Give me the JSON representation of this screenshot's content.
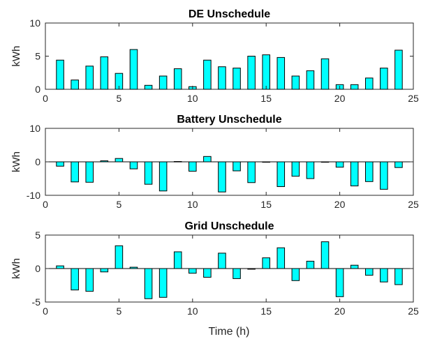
{
  "figure": {
    "xlabel": "Time (h)"
  },
  "style": {
    "bar_color": "#00ffff",
    "edge_color": "#000000"
  },
  "chart_data": [
    {
      "type": "bar",
      "title": "DE Unschedule",
      "ylabel": "kWh",
      "xlabel": "",
      "xlim": [
        0,
        25
      ],
      "ylim": [
        0,
        10
      ],
      "xticks": [
        0,
        5,
        10,
        15,
        20,
        25
      ],
      "yticks": [
        0,
        5,
        10
      ],
      "x": [
        1,
        2,
        3,
        4,
        5,
        6,
        7,
        8,
        9,
        10,
        11,
        12,
        13,
        14,
        15,
        16,
        17,
        18,
        19,
        20,
        21,
        22,
        23,
        24
      ],
      "values": [
        4.4,
        1.4,
        3.5,
        4.9,
        2.4,
        6.0,
        0.6,
        2.0,
        3.1,
        0.4,
        4.4,
        3.4,
        3.2,
        5.0,
        5.2,
        4.8,
        2.0,
        2.8,
        4.6,
        0.7,
        0.7,
        1.7,
        3.2,
        5.9
      ]
    },
    {
      "type": "bar",
      "title": "Battery Unschedule",
      "ylabel": "kWh",
      "xlabel": "",
      "xlim": [
        0,
        25
      ],
      "ylim": [
        -10,
        10
      ],
      "xticks": [
        0,
        5,
        10,
        15,
        20,
        25
      ],
      "yticks": [
        -10,
        0,
        10
      ],
      "x": [
        1,
        2,
        3,
        4,
        5,
        6,
        7,
        8,
        9,
        10,
        11,
        12,
        13,
        14,
        15,
        16,
        17,
        18,
        19,
        20,
        21,
        22,
        23,
        24
      ],
      "values": [
        -1.3,
        -6.0,
        -6.1,
        0.3,
        1.0,
        -2.1,
        -6.7,
        -8.7,
        0.1,
        -2.8,
        1.6,
        -9.0,
        -2.7,
        -6.2,
        -0.1,
        -7.4,
        -4.3,
        -5.0,
        -0.1,
        -1.6,
        -7.2,
        -5.9,
        -8.2,
        -1.7
      ]
    },
    {
      "type": "bar",
      "title": "Grid Unschedule",
      "ylabel": "kWh",
      "xlabel": "Time (h)",
      "xlim": [
        0,
        25
      ],
      "ylim": [
        -5,
        5
      ],
      "xticks": [
        0,
        5,
        10,
        15,
        20,
        25
      ],
      "yticks": [
        -5,
        0,
        5
      ],
      "x": [
        1,
        2,
        3,
        4,
        5,
        6,
        7,
        8,
        9,
        10,
        11,
        12,
        13,
        14,
        15,
        16,
        17,
        18,
        19,
        20,
        21,
        22,
        23,
        24
      ],
      "values": [
        0.4,
        -3.2,
        -3.4,
        -0.5,
        3.4,
        0.2,
        -4.5,
        -4.3,
        2.5,
        -0.7,
        -1.3,
        2.3,
        -1.5,
        -0.1,
        1.6,
        3.1,
        -1.8,
        1.1,
        4.0,
        -4.2,
        0.5,
        -1.0,
        -2.0,
        -2.4
      ]
    }
  ]
}
